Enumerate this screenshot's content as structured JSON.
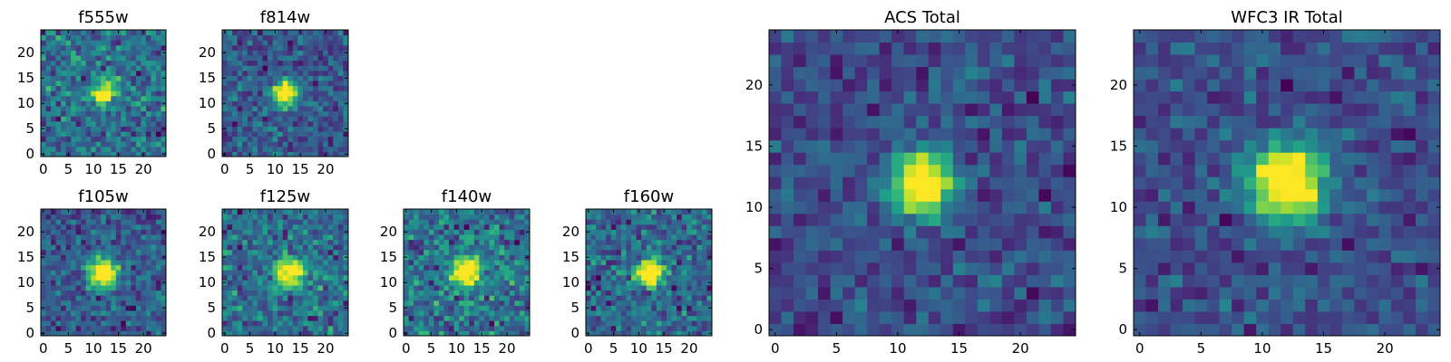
{
  "chart_data": [
    {
      "type": "heatmap",
      "title": "f555w",
      "xlim": [
        -0.5,
        24.5
      ],
      "ylim": [
        -0.5,
        24.5
      ],
      "xticks": [
        0,
        5,
        10,
        15,
        20
      ],
      "yticks": [
        0,
        5,
        10,
        15,
        20
      ],
      "source_center": [
        12,
        12
      ],
      "source_sigma": 1.6,
      "noise": 0.3,
      "peak": 1.0,
      "seed": 11,
      "colormap": "viridis"
    },
    {
      "type": "heatmap",
      "title": "f814w",
      "xlim": [
        -0.5,
        24.5
      ],
      "ylim": [
        -0.5,
        24.5
      ],
      "xticks": [
        0,
        5,
        10,
        15,
        20
      ],
      "yticks": [
        0,
        5,
        10,
        15,
        20
      ],
      "source_center": [
        12,
        12
      ],
      "source_sigma": 1.6,
      "noise": 0.22,
      "peak": 1.0,
      "seed": 23,
      "colormap": "viridis"
    },
    {
      "type": "heatmap",
      "title": "f105w",
      "xlim": [
        -0.5,
        24.5
      ],
      "ylim": [
        -0.5,
        24.5
      ],
      "xticks": [
        0,
        5,
        10,
        15,
        20
      ],
      "yticks": [
        0,
        5,
        10,
        15,
        20
      ],
      "source_center": [
        12,
        12
      ],
      "source_sigma": 2.0,
      "noise": 0.22,
      "peak": 1.0,
      "seed": 37,
      "colormap": "viridis"
    },
    {
      "type": "heatmap",
      "title": "f125w",
      "xlim": [
        -0.5,
        24.5
      ],
      "ylim": [
        -0.5,
        24.5
      ],
      "xticks": [
        0,
        5,
        10,
        15,
        20
      ],
      "yticks": [
        0,
        5,
        10,
        15,
        20
      ],
      "source_center": [
        13,
        12
      ],
      "source_sigma": 2.0,
      "noise": 0.3,
      "peak": 1.0,
      "seed": 41,
      "colormap": "viridis"
    },
    {
      "type": "heatmap",
      "title": "f140w",
      "xlim": [
        -0.5,
        24.5
      ],
      "ylim": [
        -0.5,
        24.5
      ],
      "xticks": [
        0,
        5,
        10,
        15,
        20
      ],
      "yticks": [
        0,
        5,
        10,
        15,
        20
      ],
      "source_center": [
        12,
        12
      ],
      "source_sigma": 2.0,
      "noise": 0.32,
      "peak": 1.0,
      "seed": 53,
      "colormap": "viridis"
    },
    {
      "type": "heatmap",
      "title": "f160w",
      "xlim": [
        -0.5,
        24.5
      ],
      "ylim": [
        -0.5,
        24.5
      ],
      "xticks": [
        0,
        5,
        10,
        15,
        20
      ],
      "yticks": [
        0,
        5,
        10,
        15,
        20
      ],
      "source_center": [
        12,
        12
      ],
      "source_sigma": 1.9,
      "noise": 0.28,
      "peak": 1.0,
      "seed": 67,
      "colormap": "viridis"
    },
    {
      "type": "heatmap",
      "title": "ACS Total",
      "xlim": [
        -0.5,
        24.5
      ],
      "ylim": [
        -0.5,
        24.5
      ],
      "xticks": [
        0,
        5,
        10,
        15,
        20
      ],
      "yticks": [
        0,
        5,
        10,
        15,
        20
      ],
      "source_center": [
        12,
        12
      ],
      "source_sigma": 1.7,
      "noise": 0.17,
      "peak": 1.0,
      "seed": 79,
      "colormap": "viridis"
    },
    {
      "type": "heatmap",
      "title": "WFC3 IR Total",
      "xlim": [
        -0.5,
        24.5
      ],
      "ylim": [
        -0.5,
        24.5
      ],
      "xticks": [
        0,
        5,
        10,
        15,
        20
      ],
      "yticks": [
        0,
        5,
        10,
        15,
        20
      ],
      "source_center": [
        12,
        12
      ],
      "source_sigma": 2.1,
      "noise": 0.16,
      "peak": 1.0,
      "seed": 97,
      "colormap": "viridis"
    }
  ]
}
